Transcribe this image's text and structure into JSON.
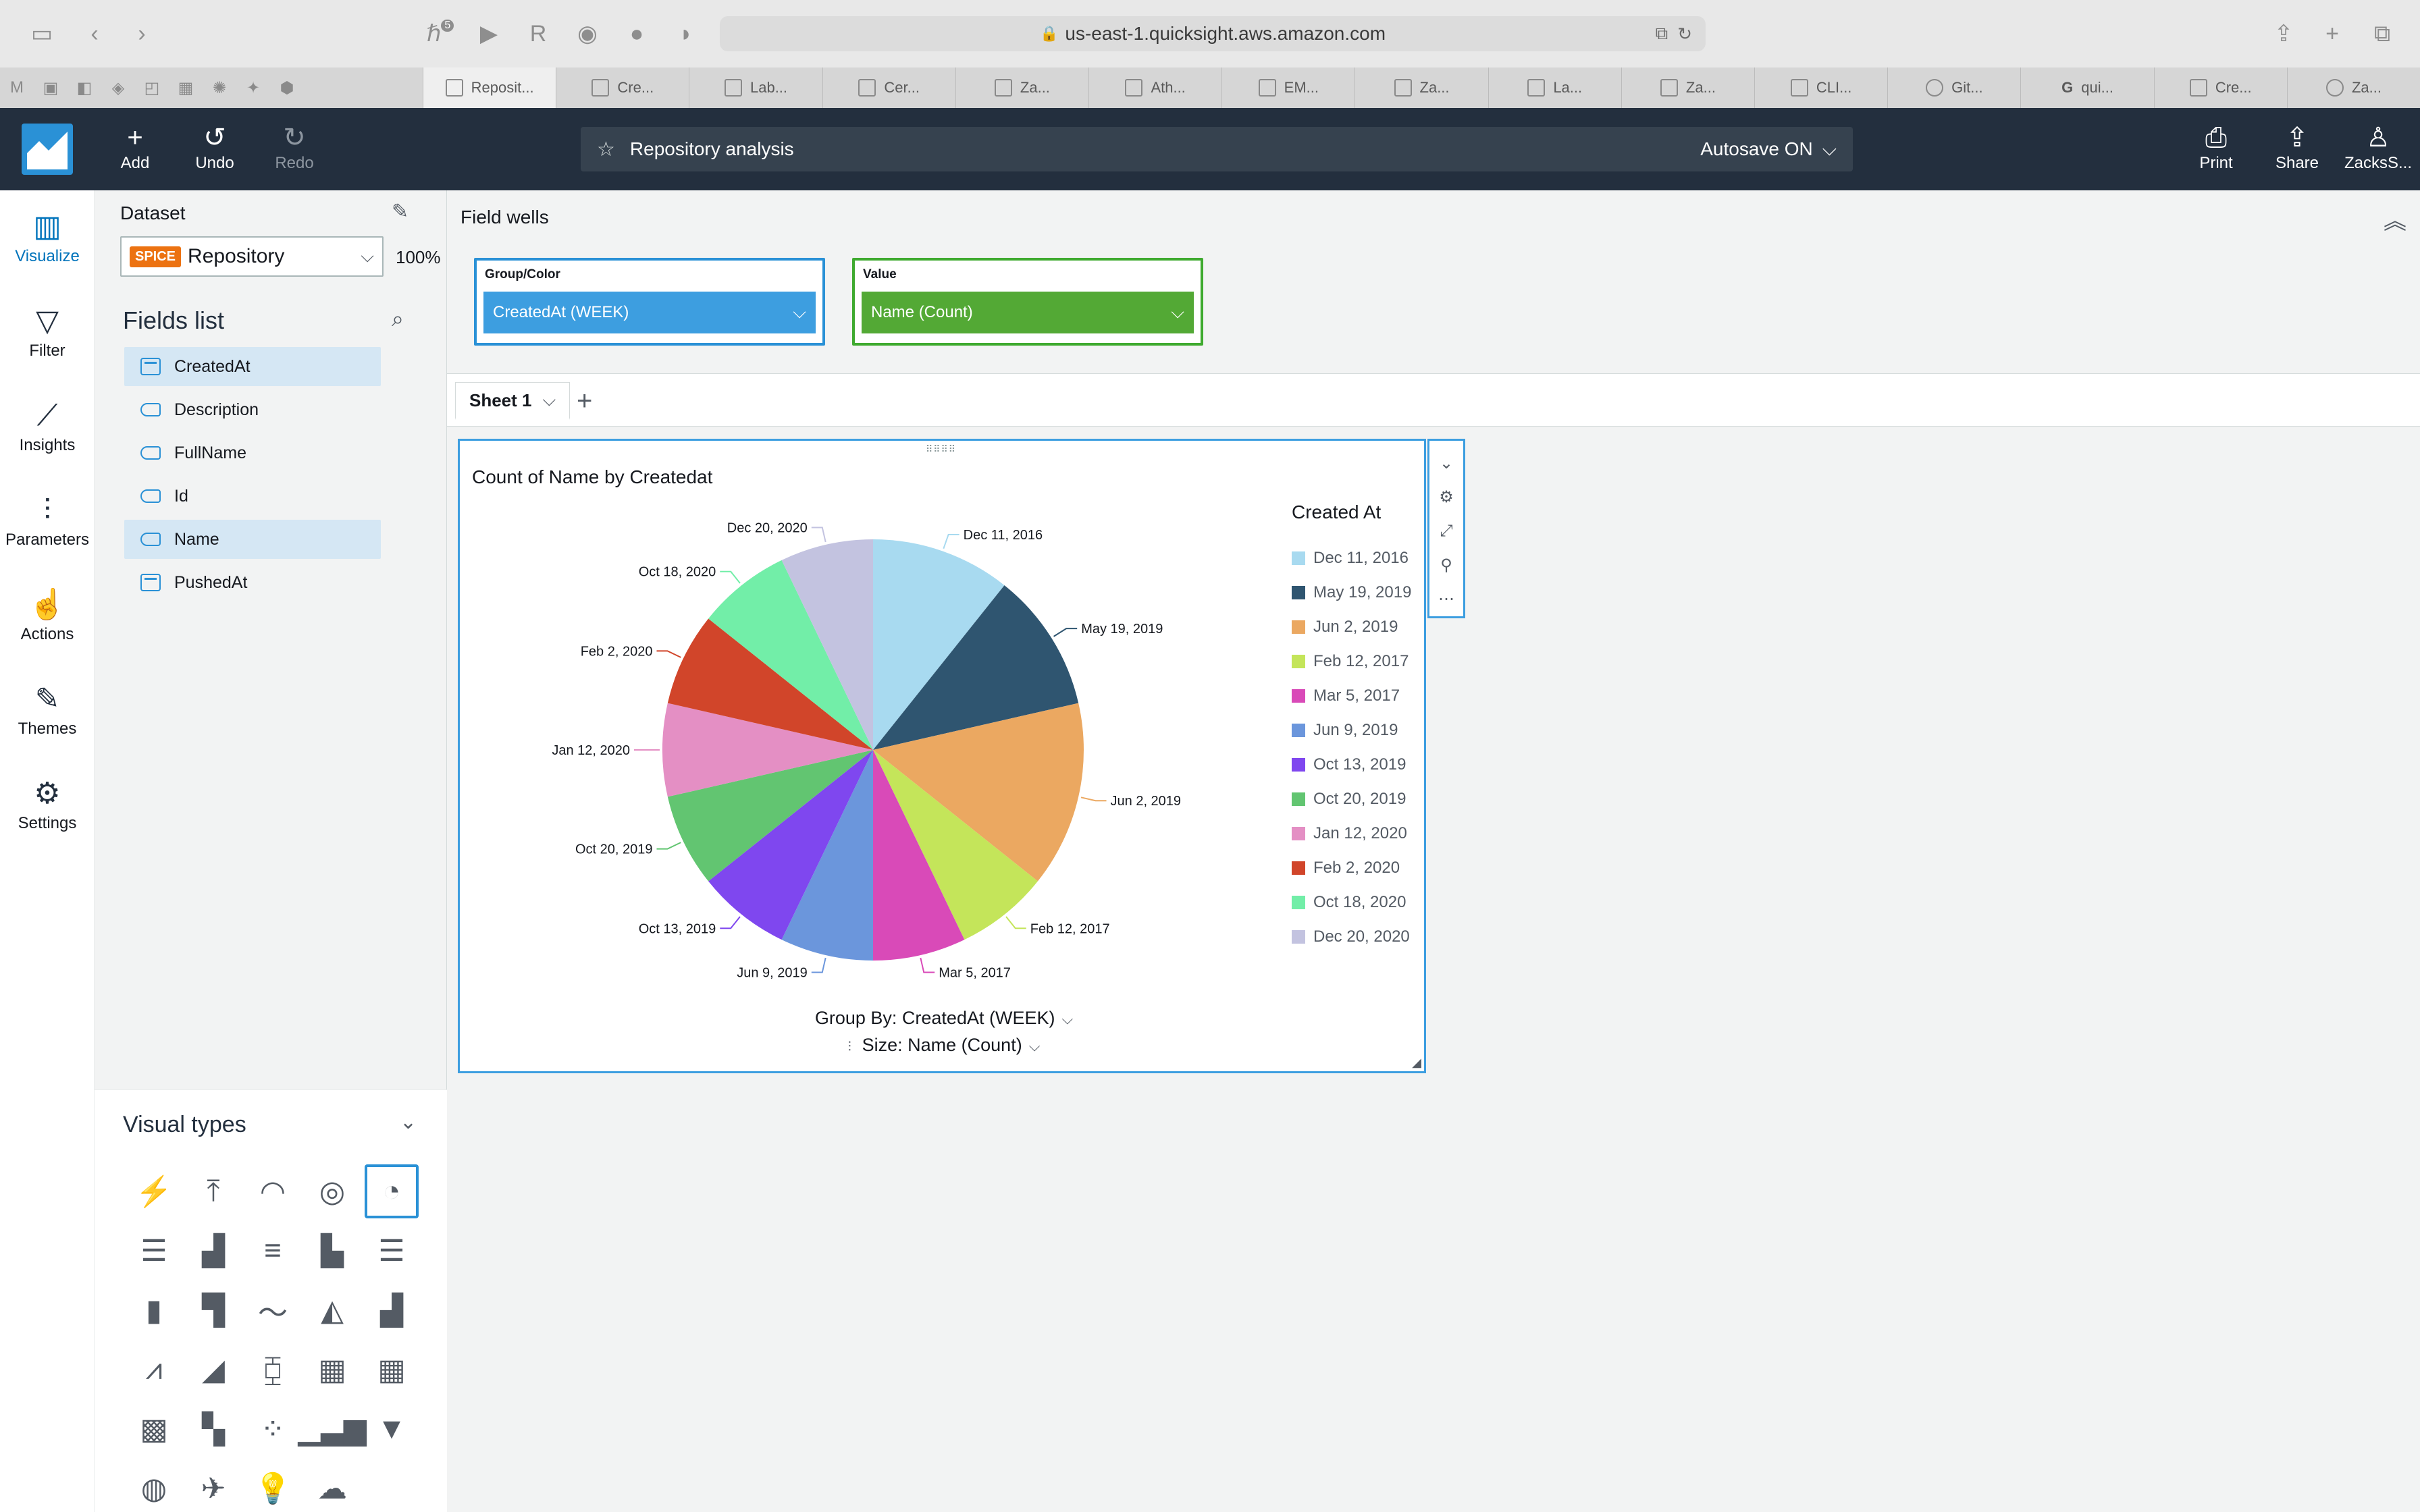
{
  "browser": {
    "url": "us-east-1.quicksight.aws.amazon.com",
    "extension_badge": "5",
    "tabs": [
      {
        "label": "Reposit...",
        "active": true
      },
      {
        "label": "Cre...",
        "active": false
      },
      {
        "label": "Lab...",
        "active": false
      },
      {
        "label": "Cer...",
        "active": false
      },
      {
        "label": "Za...",
        "active": false
      },
      {
        "label": "Ath...",
        "active": false
      },
      {
        "label": "EM...",
        "active": false
      },
      {
        "label": "Za...",
        "active": false
      },
      {
        "label": "La...",
        "active": false
      },
      {
        "label": "Za...",
        "active": false
      },
      {
        "label": "CLI...",
        "active": false
      },
      {
        "label": "Git...",
        "active": false
      },
      {
        "label": "qui...",
        "active": false
      },
      {
        "label": "Cre...",
        "active": false
      },
      {
        "label": "Za...",
        "active": false
      }
    ]
  },
  "header": {
    "add_label": "Add",
    "undo_label": "Undo",
    "redo_label": "Redo",
    "analysis_name": "Repository analysis",
    "autosave_label": "Autosave ON",
    "print_label": "Print",
    "share_label": "Share",
    "user_label": "ZacksS..."
  },
  "left_nav": {
    "visualize": "Visualize",
    "filter": "Filter",
    "insights": "Insights",
    "parameters": "Parameters",
    "actions": "Actions",
    "themes": "Themes",
    "settings": "Settings"
  },
  "data_panel": {
    "dataset_label": "Dataset",
    "spice_badge": "SPICE",
    "dataset_name": "Repository",
    "dataset_percent": "100%",
    "fields_title": "Fields list",
    "fields": [
      {
        "name": "CreatedAt",
        "type": "date",
        "selected": true
      },
      {
        "name": "Description",
        "type": "dimension",
        "selected": false
      },
      {
        "name": "FullName",
        "type": "dimension",
        "selected": false
      },
      {
        "name": "Id",
        "type": "dimension",
        "selected": false
      },
      {
        "name": "Name",
        "type": "dimension",
        "selected": true
      },
      {
        "name": "PushedAt",
        "type": "date",
        "selected": false
      }
    ],
    "visual_types_title": "Visual types"
  },
  "field_wells": {
    "title": "Field wells",
    "group_label": "Group/Color",
    "group_value": "CreatedAt (WEEK)",
    "value_label": "Value",
    "value_value": "Name (Count)"
  },
  "sheets": {
    "tabs": [
      "Sheet 1"
    ]
  },
  "visual": {
    "group_by_text": "Group By: CreatedAt (WEEK)",
    "size_text": "Size: Name (Count)"
  },
  "chart_data": {
    "type": "pie",
    "title": "Count of Name by Createdat",
    "legend_title": "Created At",
    "legend_position": "right",
    "categories": [
      "Dec 11, 2016",
      "May 19, 2019",
      "Jun 2, 2019",
      "Feb 12, 2017",
      "Mar 5, 2017",
      "Jun 9, 2019",
      "Oct 13, 2019",
      "Oct 20, 2019",
      "Jan 12, 2020",
      "Feb 2, 2020",
      "Oct 18, 2020",
      "Dec 20, 2020"
    ],
    "values": [
      3,
      3,
      4,
      2,
      2,
      2,
      2,
      2,
      2,
      2,
      2,
      2
    ],
    "colors": [
      "#a8daf0",
      "#2f5570",
      "#eba861",
      "#c4e55a",
      "#d94ab8",
      "#6b96dc",
      "#7f47ef",
      "#62c571",
      "#e48fc4",
      "#d1452a",
      "#72eea8",
      "#c3c3e0"
    ]
  }
}
